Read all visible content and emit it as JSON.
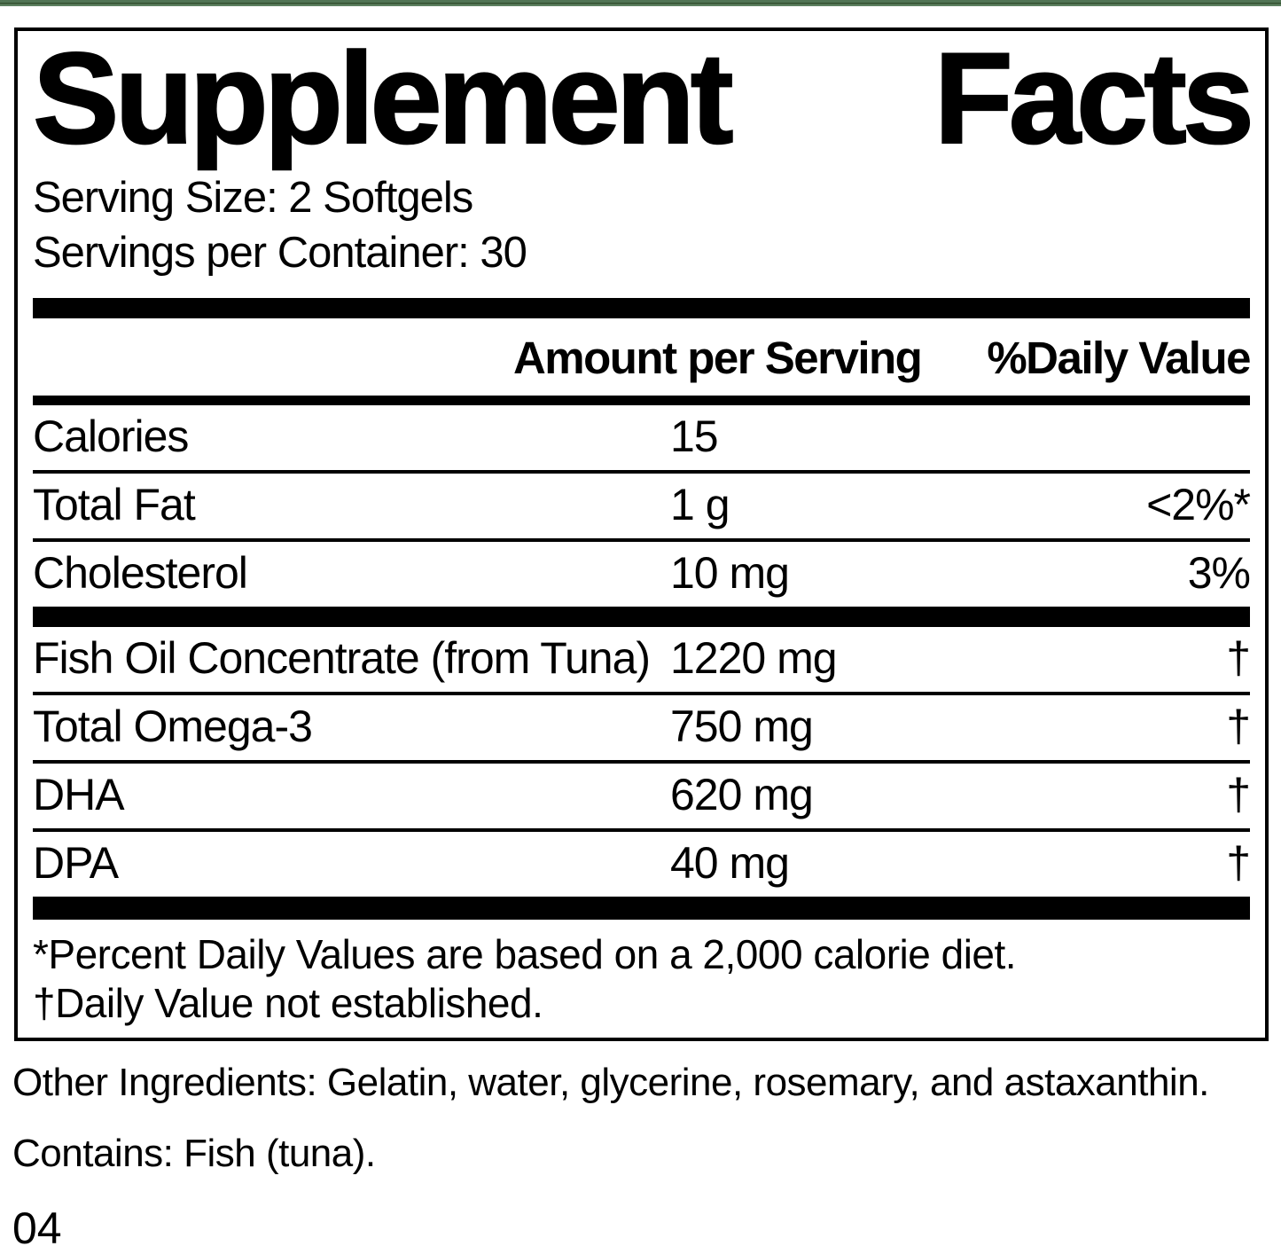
{
  "label": {
    "title_words": [
      "Supplement",
      "Facts"
    ],
    "serving_size": "Serving Size: 2 Softgels",
    "servings_per_container": "Servings per Container: 30",
    "header": {
      "amount": "Amount per Serving",
      "daily_value": "%Daily Value"
    },
    "main_rows": [
      {
        "name": "Calories",
        "amount": "15",
        "dv": ""
      },
      {
        "name": "Total Fat",
        "amount": "1 g",
        "dv": "<2%*"
      },
      {
        "name": "Cholesterol",
        "amount": "10 mg",
        "dv": "3%"
      }
    ],
    "supplement_rows": [
      {
        "name": "Fish Oil Concentrate (from Tuna)",
        "amount": "1220 mg",
        "dv": "†"
      },
      {
        "name": "Total Omega-3",
        "amount": "750 mg",
        "dv": "†"
      },
      {
        "name": "DHA",
        "amount": "620 mg",
        "dv": "†"
      },
      {
        "name": "DPA",
        "amount": "40 mg",
        "dv": "†"
      }
    ],
    "footnotes": [
      "*Percent Daily Values are based on a 2,000 calorie diet.",
      "†Daily Value not established."
    ]
  },
  "below_label": {
    "other_ingredients": "Other Ingredients: Gelatin, water, glycerine, rosemary, and astaxanthin.",
    "contains": "Contains: Fish (tuna).",
    "page_number": "04"
  },
  "colors": {
    "text": "#000000",
    "background": "#ffffff",
    "top_strip_green": "#517454"
  }
}
